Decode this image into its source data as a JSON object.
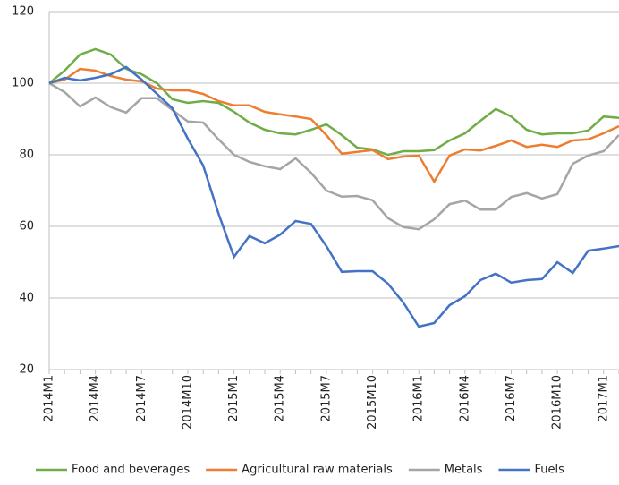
{
  "chart_data": {
    "type": "line",
    "categories": [
      "2014M1",
      null,
      null,
      "2014M4",
      null,
      null,
      "2014M7",
      null,
      null,
      "2014M10",
      null,
      null,
      "2015M1",
      null,
      null,
      "2015M4",
      null,
      null,
      "2015M7",
      null,
      null,
      "2015M10",
      null,
      null,
      "2016M1",
      null,
      null,
      "2016M4",
      null,
      null,
      "2016M7",
      null,
      null,
      "2016M10",
      null,
      null,
      "2017M1",
      null
    ],
    "series": [
      {
        "name": "Food and beverages",
        "color": "#70ad47",
        "values": [
          100,
          103.5,
          108,
          109.5,
          108,
          104,
          102.5,
          100,
          95.5,
          94.5,
          95,
          94.5,
          92,
          89,
          87,
          86,
          85.7,
          87,
          88.5,
          85.5,
          82,
          81.5,
          80,
          81,
          81,
          81.3,
          84,
          86,
          89.5,
          92.8,
          90.7,
          87,
          85.7,
          86,
          86,
          86.8,
          90.7,
          90.3
        ]
      },
      {
        "name": "Agricultural raw materials",
        "color": "#ed7d31",
        "values": [
          100,
          101,
          104,
          103.5,
          102,
          101,
          100.5,
          98.5,
          98,
          98,
          97,
          95,
          93.8,
          93.8,
          92,
          91.3,
          90.7,
          90,
          85.5,
          80.3,
          80.8,
          81.3,
          78.8,
          79.5,
          79.8,
          72.5,
          79.8,
          81.5,
          81.2,
          82.5,
          84,
          82.2,
          82.8,
          82.2,
          84,
          84.3,
          86,
          88
        ]
      },
      {
        "name": "Metals",
        "color": "#a5a5a5",
        "values": [
          100,
          97.5,
          93.5,
          96,
          93.3,
          91.8,
          95.8,
          95.8,
          92.5,
          89.3,
          89,
          84.3,
          80,
          78,
          76.8,
          76,
          79,
          75,
          70,
          68.3,
          68.5,
          67.3,
          62.3,
          59.8,
          59.2,
          62,
          66.2,
          67.2,
          64.7,
          64.7,
          68.2,
          69.3,
          67.8,
          69,
          77.5,
          79.8,
          81,
          85.5
        ]
      },
      {
        "name": "Fuels",
        "color": "#4472c4",
        "values": [
          100,
          101.5,
          100.8,
          101.5,
          102.5,
          104.5,
          101,
          97,
          93,
          84.5,
          77,
          63.5,
          51.5,
          57.3,
          55.3,
          57.7,
          61.5,
          60.7,
          54.5,
          47.3,
          47.5,
          47.5,
          44,
          38.7,
          32,
          33,
          38,
          40.5,
          45,
          46.8,
          44.3,
          45,
          45.3,
          50,
          47,
          53.2,
          53.8,
          54.5
        ]
      }
    ],
    "ylim": [
      20,
      120
    ],
    "yticks": [
      20,
      40,
      60,
      80,
      100,
      120
    ],
    "grid": true,
    "legend": "bottom"
  }
}
